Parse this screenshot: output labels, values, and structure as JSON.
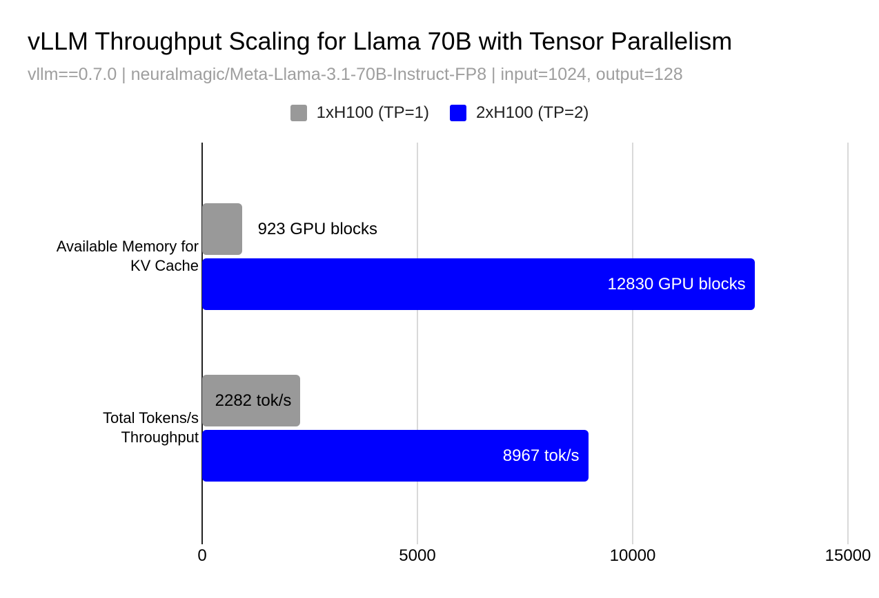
{
  "title": "vLLM Throughput Scaling for Llama 70B with Tensor Parallelism",
  "subtitle": "vllm==0.7.0 | neuralmagic/Meta-Llama-3.1-70B-Instruct-FP8 | input=1024, output=128",
  "legend": [
    {
      "label": "1xH100 (TP=1)",
      "color": "#999999"
    },
    {
      "label": "2xH100 (TP=2)",
      "color": "#0000ff"
    }
  ],
  "category_lines": [
    [
      "Available Memory for",
      "KV Cache"
    ],
    [
      "Total Tokens/s",
      "Throughput"
    ]
  ],
  "chart_data": {
    "type": "bar",
    "orientation": "horizontal",
    "title": "vLLM Throughput Scaling for Llama 70B with Tensor Parallelism",
    "subtitle": "vllm==0.7.0 | neuralmagic/Meta-Llama-3.1-70B-Instruct-FP8 | input=1024, output=128",
    "categories": [
      "Available Memory for KV Cache",
      "Total Tokens/s Throughput"
    ],
    "series": [
      {
        "name": "1xH100 (TP=1)",
        "color": "#999999",
        "values": [
          923,
          2282
        ],
        "labels": [
          "923 GPU blocks",
          "2282 tok/s"
        ],
        "label_color_inside": "#000000"
      },
      {
        "name": "2xH100 (TP=2)",
        "color": "#0000ff",
        "values": [
          12830,
          8967
        ],
        "labels": [
          "12830 GPU blocks",
          "8967 tok/s"
        ],
        "label_color_inside": "#ffffff"
      }
    ],
    "xlim": [
      0,
      15000
    ],
    "x_ticks": [
      0,
      5000,
      10000,
      15000
    ],
    "grid": true,
    "legend_position": "top",
    "units": [
      "GPU blocks",
      "tok/s"
    ]
  },
  "colors": {
    "background": "#ffffff",
    "axis": "#212121",
    "gridline": "#d9d9d9",
    "title_text": "#000000",
    "subtitle_text": "#9e9e9e",
    "outside_label_text": "#000000"
  }
}
